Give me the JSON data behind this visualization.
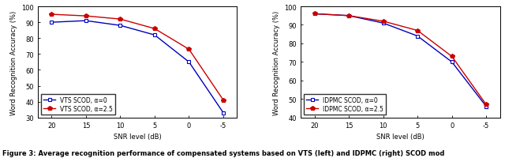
{
  "snr_levels": [
    20,
    15,
    10,
    5,
    0,
    -5
  ],
  "left": {
    "alpha0": [
      90,
      91,
      88,
      82,
      65,
      33
    ],
    "alpha25": [
      95,
      94,
      92,
      86,
      73,
      41
    ],
    "ylabel": "Word Recognition Accuracy (%)",
    "xlabel": "SNR level (dB)",
    "ylim": [
      30,
      100
    ],
    "yticks": [
      30,
      40,
      50,
      60,
      70,
      80,
      90,
      100
    ],
    "legend0": "VTS SCOD, α=0",
    "legend25": "VTS SCOD, α=2.5"
  },
  "right": {
    "alpha0": [
      96,
      95,
      91,
      84,
      70,
      46
    ],
    "alpha25": [
      96,
      95,
      92,
      87,
      73,
      47
    ],
    "ylabel": "Word Recognition Accuracy (%)",
    "xlabel": "SNR level (dB)",
    "ylim": [
      40,
      100
    ],
    "yticks": [
      40,
      50,
      60,
      70,
      80,
      90,
      100
    ],
    "legend0": "IDPMC SCOD, α=0",
    "legend25": "IDPMC SCOD, α=2.5"
  },
  "color_blue": "#0000BB",
  "color_red": "#CC0000",
  "caption": "Figure 3: Average recognition performance of compensated systems based on VTS (left) and IDPMC (right) SCOD mod",
  "caption_fontsize": 6.0,
  "axis_label_fontsize": 6.0,
  "tick_fontsize": 6.0,
  "legend_fontsize": 5.5,
  "line_width": 1.0,
  "marker_size": 3.5
}
